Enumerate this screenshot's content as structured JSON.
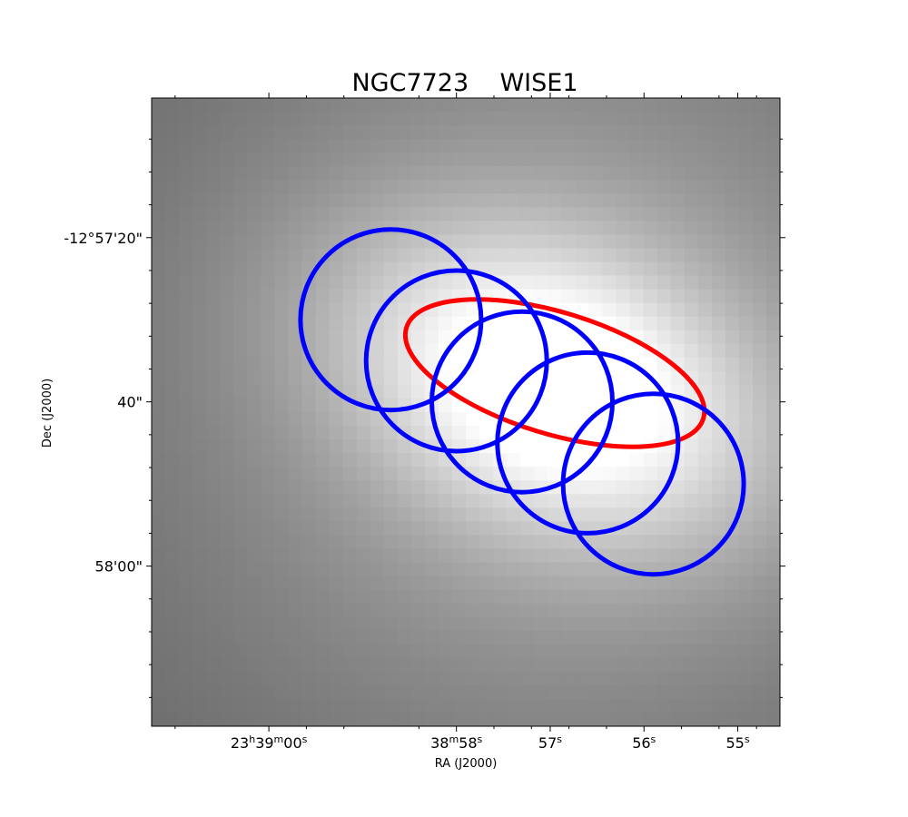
{
  "chart_data": {
    "type": "image",
    "title": "NGC7723    WISE1",
    "xlabel": "RA (J2000)",
    "ylabel": "Dec (J2000)",
    "x_axis": {
      "coordinate": "RA",
      "unit": "s",
      "note": "values are RA seconds after 23h38m, increasing to the left",
      "range": [
        61.25,
        54.55
      ],
      "major_ticks": [
        {
          "value": 60,
          "label_parts": [
            [
              "23",
              "n"
            ],
            [
              "h",
              "s"
            ],
            [
              "39",
              "n"
            ],
            [
              "m",
              "s"
            ],
            [
              "00",
              "n"
            ],
            [
              "s",
              "s"
            ]
          ]
        },
        {
          "value": 58,
          "label_parts": [
            [
              "38",
              "n"
            ],
            [
              "m",
              "s"
            ],
            [
              "58",
              "n"
            ],
            [
              "s",
              "s"
            ]
          ]
        },
        {
          "value": 57,
          "label_parts": [
            [
              "57",
              "n"
            ],
            [
              "s",
              "s"
            ]
          ]
        },
        {
          "value": 56,
          "label_parts": [
            [
              "56",
              "n"
            ],
            [
              "s",
              "s"
            ]
          ]
        },
        {
          "value": 55,
          "label_parts": [
            [
              "55",
              "n"
            ],
            [
              "s",
              "s"
            ]
          ]
        }
      ],
      "minor_ticks": [
        61.0,
        59.6,
        59.2,
        58.4,
        57.6,
        57.2,
        56.8,
        56.4,
        55.6,
        55.2,
        54.8
      ]
    },
    "y_axis": {
      "coordinate": "Dec",
      "unit": "arcsec",
      "note": "values are arcseconds after -12°57'00\", increasing downward (more negative Dec)",
      "range": [
        3.0,
        79.5
      ],
      "major_ticks": [
        {
          "value": 20,
          "label": "-12°57'20\""
        },
        {
          "value": 40,
          "label": "40\""
        },
        {
          "value": 60,
          "label": "58'00\""
        }
      ],
      "minor_ticks": [
        8,
        12,
        16,
        24,
        28,
        32,
        36,
        44,
        48,
        52,
        56,
        64,
        68,
        72,
        76
      ]
    },
    "background": {
      "colormap": "gray",
      "description_values": "peak brightness near center along the galaxy major axis",
      "source_center": [
        56.95,
        38.0
      ],
      "source_sigma_major_arcsec": 19,
      "source_sigma_minor_arcsec": 11.5,
      "position_angle_deg": -22,
      "floor": 0.25,
      "ceiling": 1.0
    },
    "ellipses": [
      {
        "name": "galaxy",
        "color": "#ff0000",
        "center_x": 56.95,
        "center_y": 36.5,
        "semi_major_arcsec": 18.9,
        "semi_minor_arcsec": 7.4,
        "angle_deg": 17
      },
      {
        "name": "aperture-1",
        "color": "#0000ff",
        "center_x": 58.7,
        "center_y": 30.0,
        "radius_arcsec": 11
      },
      {
        "name": "aperture-2",
        "color": "#0000ff",
        "center_x": 58.0,
        "center_y": 35.0,
        "radius_arcsec": 11
      },
      {
        "name": "aperture-3",
        "color": "#0000ff",
        "center_x": 57.3,
        "center_y": 40.0,
        "radius_arcsec": 11
      },
      {
        "name": "aperture-4",
        "color": "#0000ff",
        "center_x": 56.6,
        "center_y": 45.0,
        "radius_arcsec": 11
      },
      {
        "name": "aperture-5",
        "color": "#0000ff",
        "center_x": 55.9,
        "center_y": 50.0,
        "radius_arcsec": 11
      }
    ]
  }
}
